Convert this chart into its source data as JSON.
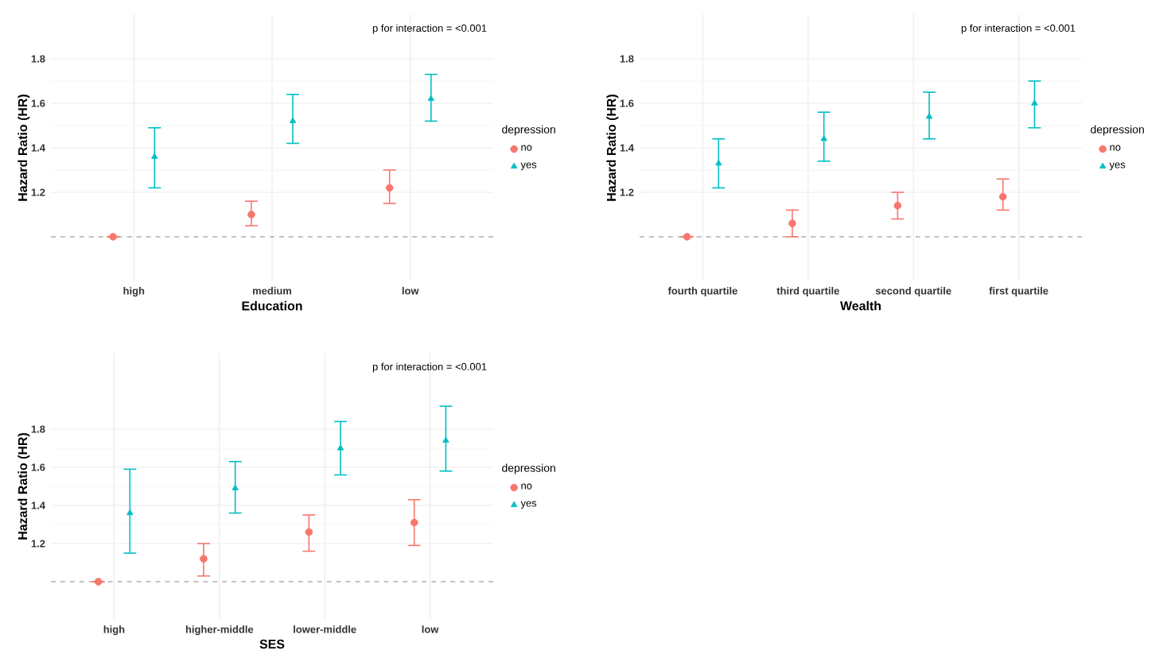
{
  "chart_data": [
    {
      "type": "scatter",
      "xlabel": "Education",
      "ylabel": "Hazard Ratio (HR)",
      "legend_title": "depression",
      "categories": [
        "high",
        "medium",
        "low"
      ],
      "ylim": [
        0.8,
        2.0
      ],
      "yticks": [
        1.2,
        1.4,
        1.6,
        1.8
      ],
      "grid": true,
      "legend": "right",
      "series": [
        {
          "name": "no",
          "color": "#f8766d",
          "marker": "circle",
          "values": [
            1.0,
            1.1,
            1.22
          ],
          "errors": [
            null,
            [
              1.05,
              1.16
            ],
            [
              1.15,
              1.3
            ]
          ]
        },
        {
          "name": "yes",
          "color": "#00bfc4",
          "marker": "triangle",
          "values": [
            1.36,
            1.52,
            1.62
          ],
          "errors": [
            [
              1.22,
              1.49
            ],
            [
              1.42,
              1.64
            ],
            [
              1.52,
              1.73
            ]
          ]
        }
      ],
      "ref_lines": [
        {
          "axis": "y",
          "value": 1.0,
          "line_style": "dashed",
          "color": "#888888"
        }
      ],
      "annotations": [
        "p for interaction = <0.001"
      ]
    },
    {
      "type": "scatter",
      "xlabel": "Wealth",
      "ylabel": "Hazard Ratio (HR)",
      "legend_title": "depression",
      "categories": [
        "fourth quartile",
        "third quartile",
        "second quartile",
        "first quartile"
      ],
      "ylim": [
        0.8,
        2.0
      ],
      "yticks": [
        1.2,
        1.4,
        1.6,
        1.8
      ],
      "grid": true,
      "legend": "right",
      "series": [
        {
          "name": "no",
          "color": "#f8766d",
          "marker": "circle",
          "values": [
            1.0,
            1.06,
            1.14,
            1.18
          ],
          "errors": [
            null,
            [
              1.0,
              1.12
            ],
            [
              1.08,
              1.2
            ],
            [
              1.12,
              1.26
            ]
          ]
        },
        {
          "name": "yes",
          "color": "#00bfc4",
          "marker": "triangle",
          "values": [
            1.33,
            1.44,
            1.54,
            1.6
          ],
          "errors": [
            [
              1.22,
              1.44
            ],
            [
              1.34,
              1.56
            ],
            [
              1.44,
              1.65
            ],
            [
              1.49,
              1.7
            ]
          ]
        }
      ],
      "ref_lines": [
        {
          "axis": "y",
          "value": 1.0,
          "line_style": "dashed",
          "color": "#888888"
        }
      ],
      "annotations": [
        "p for interaction = <0.001"
      ]
    },
    {
      "type": "scatter",
      "xlabel": "SES",
      "ylabel": "Hazard Ratio (HR)",
      "legend_title": "depression",
      "categories": [
        "high",
        "higher-middle",
        "lower-middle",
        "low"
      ],
      "ylim": [
        0.8,
        2.2
      ],
      "yticks": [
        1.2,
        1.4,
        1.6,
        1.8
      ],
      "grid": true,
      "legend": "right",
      "series": [
        {
          "name": "no",
          "color": "#f8766d",
          "marker": "circle",
          "values": [
            1.0,
            1.12,
            1.26,
            1.31
          ],
          "errors": [
            null,
            [
              1.03,
              1.2
            ],
            [
              1.16,
              1.35
            ],
            [
              1.19,
              1.43
            ]
          ]
        },
        {
          "name": "yes",
          "color": "#00bfc4",
          "marker": "triangle",
          "values": [
            1.36,
            1.49,
            1.7,
            1.74
          ],
          "errors": [
            [
              1.15,
              1.59
            ],
            [
              1.36,
              1.63
            ],
            [
              1.56,
              1.84
            ],
            [
              1.58,
              1.92
            ]
          ]
        }
      ],
      "ref_lines": [
        {
          "axis": "y",
          "value": 1.0,
          "line_style": "dashed",
          "color": "#888888"
        }
      ],
      "annotations": [
        "p for interaction = <0.001"
      ]
    }
  ]
}
